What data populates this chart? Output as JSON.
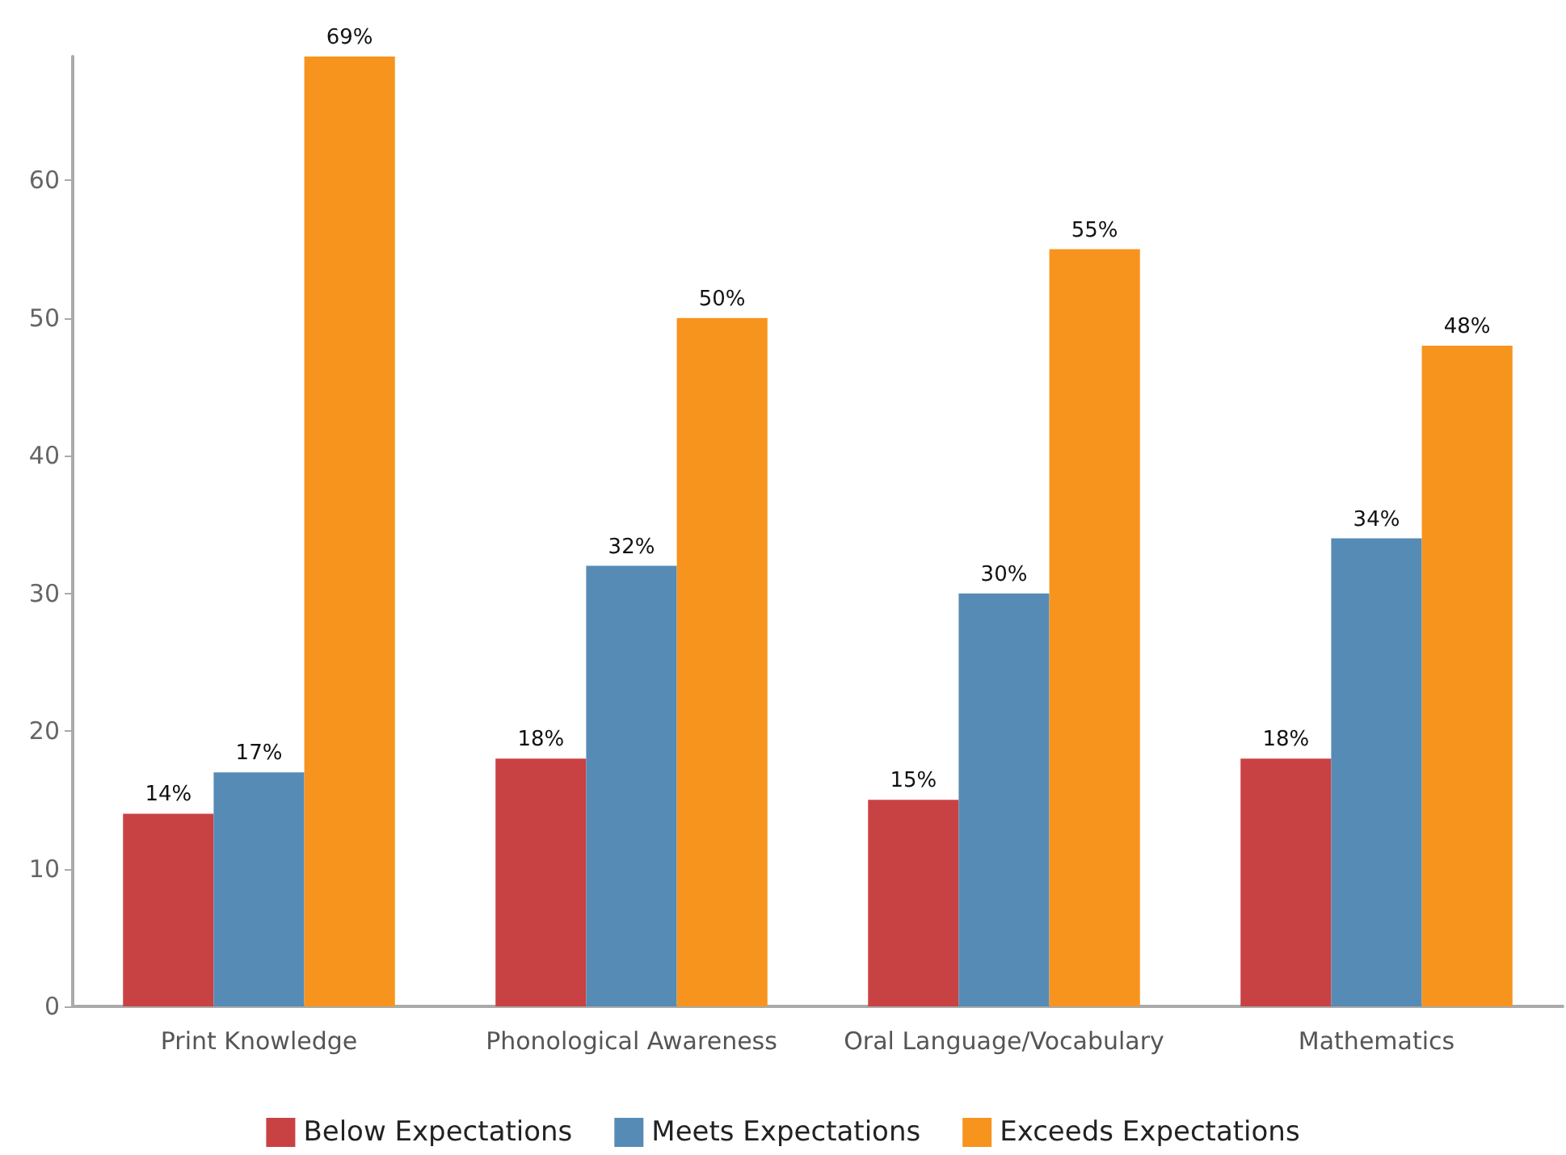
{
  "chart_data": {
    "type": "bar",
    "categories": [
      "Print Knowledge",
      "Phonological Awareness",
      "Oral Language/Vocabulary",
      "Mathematics"
    ],
    "series": [
      {
        "name": "Below Expectations",
        "color": "#c94243",
        "values": [
          14,
          18,
          15,
          18
        ],
        "value_labels": [
          "14%",
          "18%",
          "15%",
          "18%"
        ]
      },
      {
        "name": "Meets Expectations",
        "color": "#568bb5",
        "values": [
          17,
          32,
          30,
          34
        ],
        "value_labels": [
          "17%",
          "32%",
          "30%",
          "34%"
        ]
      },
      {
        "name": "Exceeds Expectations",
        "color": "#f7941e",
        "values": [
          69,
          50,
          55,
          48
        ],
        "value_labels": [
          "69%",
          "50%",
          "55%",
          "48%"
        ]
      }
    ],
    "ylim": [
      0,
      69
    ],
    "yticks": [
      0,
      10,
      20,
      30,
      40,
      50,
      60
    ],
    "grid": false,
    "legend": "bottom"
  }
}
